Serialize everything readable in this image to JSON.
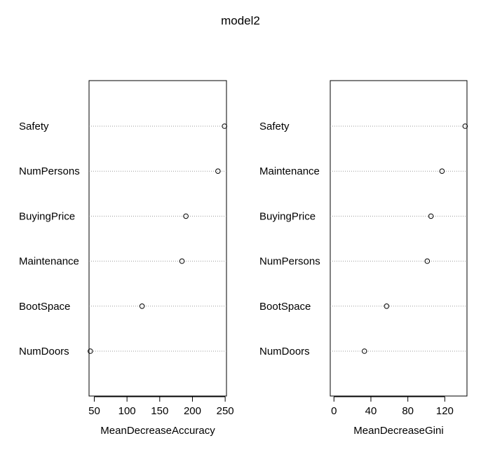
{
  "title": "model2",
  "chart_data": [
    {
      "type": "scatter",
      "subtype": "dotchart",
      "xlabel": "MeanDecreaseAccuracy",
      "ylabel": "",
      "xlim": [
        42,
        252
      ],
      "xticks": [
        50,
        100,
        150,
        200,
        250
      ],
      "grid": "horizontal-dotted",
      "categories": [
        "Safety",
        "NumPersons",
        "BuyingPrice",
        "Maintenance",
        "BootSpace",
        "NumDoors"
      ],
      "values": [
        249,
        239,
        190,
        184,
        123,
        44
      ]
    },
    {
      "type": "scatter",
      "subtype": "dotchart",
      "xlabel": "MeanDecreaseGini",
      "ylabel": "",
      "xlim": [
        -4,
        144
      ],
      "xticks": [
        0,
        40,
        80,
        120
      ],
      "grid": "horizontal-dotted",
      "categories": [
        "Safety",
        "Maintenance",
        "BuyingPrice",
        "NumPersons",
        "BootSpace",
        "NumDoors"
      ],
      "values": [
        142,
        117,
        105,
        101,
        57,
        33
      ]
    }
  ]
}
